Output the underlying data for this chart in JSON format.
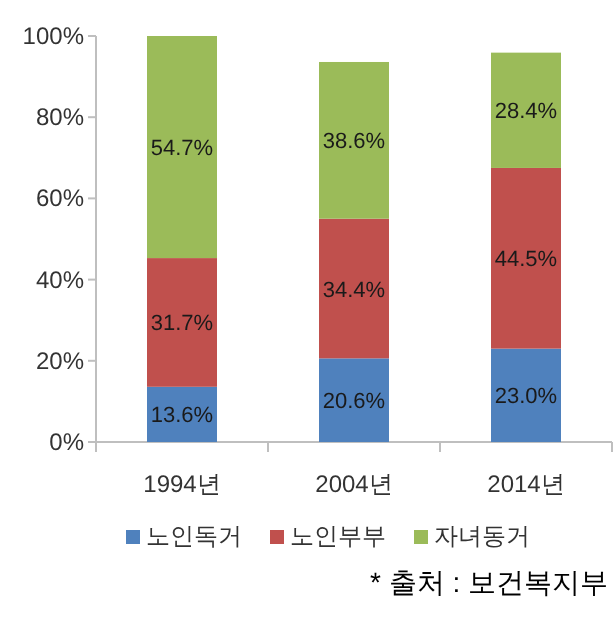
{
  "chart_data": {
    "type": "bar",
    "stacked": true,
    "categories": [
      "1994년",
      "2004년",
      "2014년"
    ],
    "series": [
      {
        "name": "노인독거",
        "color": "#4f81bd",
        "values": [
          13.6,
          20.6,
          23.0
        ],
        "value_labels": [
          "13.6%",
          "20.6%",
          "23.0%"
        ]
      },
      {
        "name": "노인부부",
        "color": "#c0504d",
        "values": [
          31.7,
          34.4,
          44.5
        ],
        "value_labels": [
          "31.7%",
          "34.4%",
          "44.5%"
        ]
      },
      {
        "name": "자녀동거",
        "color": "#9bbb59",
        "values": [
          54.7,
          38.6,
          28.4
        ],
        "value_labels": [
          "54.7%",
          "38.6%",
          "28.4%"
        ]
      }
    ],
    "ylim": [
      0,
      100
    ],
    "yticks": [
      {
        "value": 0,
        "label": "0%"
      },
      {
        "value": 20,
        "label": "20%"
      },
      {
        "value": 40,
        "label": "40%"
      },
      {
        "value": 60,
        "label": "60%"
      },
      {
        "value": 80,
        "label": "80%"
      },
      {
        "value": 100,
        "label": "100%"
      }
    ],
    "grid": false,
    "legend": "bottom",
    "annotations": [
      "* 출처 : 보건복지부"
    ]
  }
}
